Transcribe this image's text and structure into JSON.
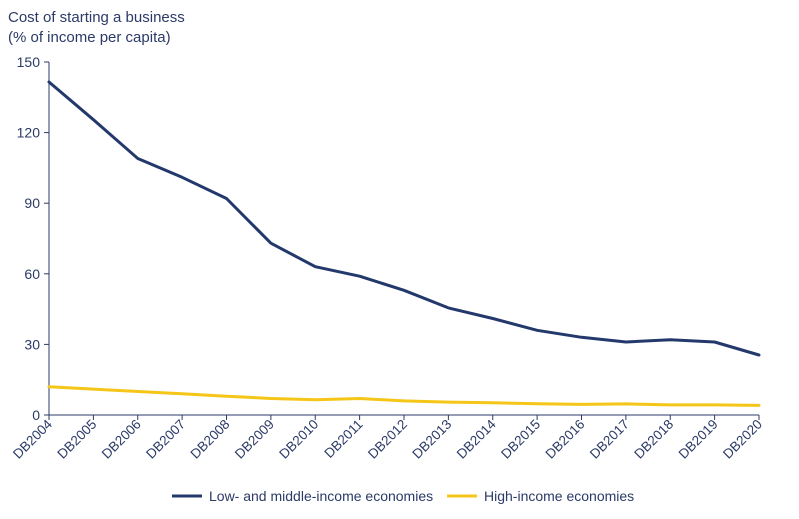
{
  "chart_data": {
    "type": "line",
    "title_lines": [
      "Cost of starting a business",
      "(% of income per capita)"
    ],
    "x": [
      "DB2004",
      "DB2005",
      "DB2006",
      "DB2007",
      "DB2008",
      "DB2009",
      "DB2010",
      "DB2011",
      "DB2012",
      "DB2013",
      "DB2014",
      "DB2015",
      "DB2016",
      "DB2017",
      "DB2018",
      "DB2019",
      "DB2020"
    ],
    "ylim": [
      0,
      150
    ],
    "yticks": [
      0,
      30,
      60,
      90,
      120,
      150
    ],
    "grid": false,
    "legend_position": "bottom",
    "series": [
      {
        "name": "Low- and middle-income economies",
        "color": "#23386b",
        "values": [
          141.5,
          125.5,
          109,
          101,
          92,
          73,
          63,
          59,
          53,
          45.5,
          41,
          36,
          33,
          31,
          32,
          31,
          25.5
        ]
      },
      {
        "name": "High-income economies",
        "color": "#f5c518",
        "values": [
          12,
          11,
          10,
          9,
          8,
          7,
          6.5,
          7,
          6,
          5.5,
          5.2,
          4.8,
          4.5,
          4.7,
          4.3,
          4.3,
          4.1
        ]
      }
    ]
  }
}
